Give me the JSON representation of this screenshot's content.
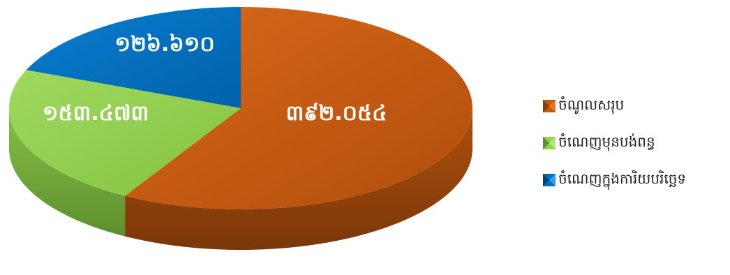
{
  "colors": {
    "brown": "#C55A11",
    "brown_dark": "#843C0C",
    "green": "#92D050",
    "green_dark": "#5E8F2E",
    "blue": "#0070C0",
    "blue_dark": "#00427A"
  },
  "chart_data": {
    "type": "pie",
    "style": "3d",
    "legend_position": "right",
    "slices": [
      {
        "name": "ចំណូលសរុប",
        "value": 392.054,
        "label": "៣៩២.០៥៤",
        "color": "#C55A11"
      },
      {
        "name": "ចំណេញមុនបង់ពន្ធ",
        "value": 153.473,
        "label": "១៥៣.៤៧៣",
        "color": "#92D050"
      },
      {
        "name": "ចំណេញក្នុងការិយបរិច្ឆេទ",
        "value": 126.61,
        "label": "១២៦.៦១០",
        "color": "#0070C0"
      }
    ]
  },
  "legend": {
    "items": [
      {
        "label": "ចំណូលសរុប",
        "icon": "legend-swatch-brown"
      },
      {
        "label": "ចំណេញមុនបង់ពន្ធ",
        "icon": "legend-swatch-green"
      },
      {
        "label": "ចំណេញក្នុងការិយបរិច្ឆេទ",
        "icon": "legend-swatch-blue"
      }
    ]
  }
}
